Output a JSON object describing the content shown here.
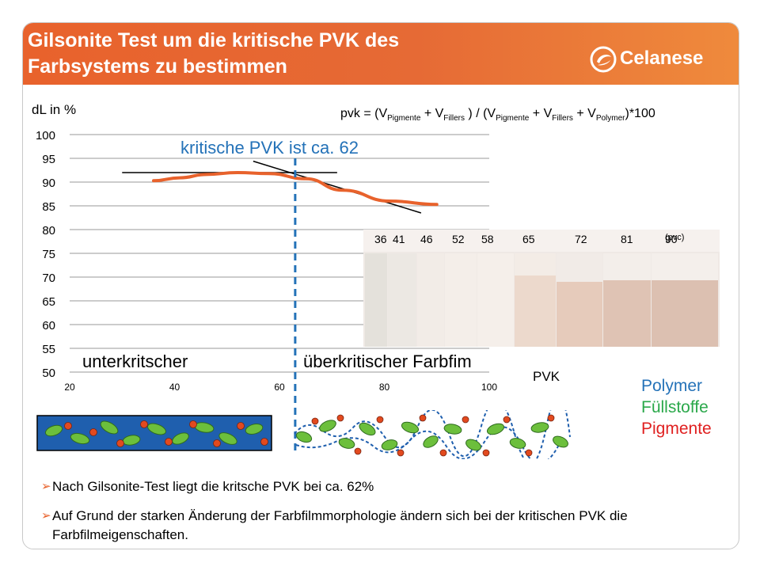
{
  "header": {
    "title_line1": "Gilsonite Test um die kritische PVK des",
    "title_line2": "Farbsystems zu bestimmen",
    "logo_text": "Celanese"
  },
  "chart_data": {
    "type": "line",
    "ylabel": "dL in %",
    "xlabel": "PVK",
    "xlim": [
      20,
      100
    ],
    "ylim": [
      50,
      100
    ],
    "x_ticks": [
      20,
      40,
      60,
      80,
      100
    ],
    "y_ticks": [
      50,
      55,
      60,
      65,
      70,
      75,
      80,
      85,
      90,
      95,
      100
    ],
    "grid": "horizontal",
    "series": [
      {
        "color": "#e8622c",
        "x": [
          36,
          41,
          46,
          52,
          58,
          65,
          72,
          81,
          90
        ],
        "y": [
          90.3,
          90.9,
          91.6,
          92.0,
          91.8,
          90.7,
          88.3,
          86.0,
          85.3
        ]
      }
    ],
    "tangent_lines": [
      {
        "x": [
          30,
          71
        ],
        "y": [
          92.0,
          92.0
        ],
        "color": "#000000"
      },
      {
        "x": [
          55,
          87
        ],
        "y": [
          94.4,
          83.5
        ],
        "color": "#000000"
      }
    ],
    "critical_line": {
      "x": 63,
      "color": "#2472b8"
    },
    "annotation": "kritische PVK ist ca. 62",
    "regions": [
      "unterkritscher",
      "überkritischer Farbfim"
    ]
  },
  "formula": {
    "lhs": "pvk = ",
    "open": "(V",
    "sub_pig": "Pigmente",
    "plus1": " + V",
    "sub_fill": "Fillers",
    "mid": " ) / (V",
    "plus2": " + V",
    "plus3": " + V",
    "sub_poly": "Polymer",
    "tail": ")*100"
  },
  "photo": {
    "labels": [
      "36",
      "41",
      "46",
      "52",
      "58",
      "65",
      "72",
      "81",
      "90"
    ],
    "unit": "(pvc)"
  },
  "legend": {
    "polymer": "Polymer",
    "fuellstoffe": "Füllstoffe",
    "pigmente": "Pigmente",
    "colors": {
      "polymer": "#1f5fae",
      "fuellstoffe": "#6cbf3c",
      "pigmente": "#e24a1f"
    }
  },
  "bullets": [
    "Nach Gilsonite-Test liegt die kritsche PVK bei ca. 62%",
    "Auf Grund der starken Änderung der Farbfilmmorphologie ändern sich bei der kritischen PVK die Farbfilmeigenschaften."
  ]
}
